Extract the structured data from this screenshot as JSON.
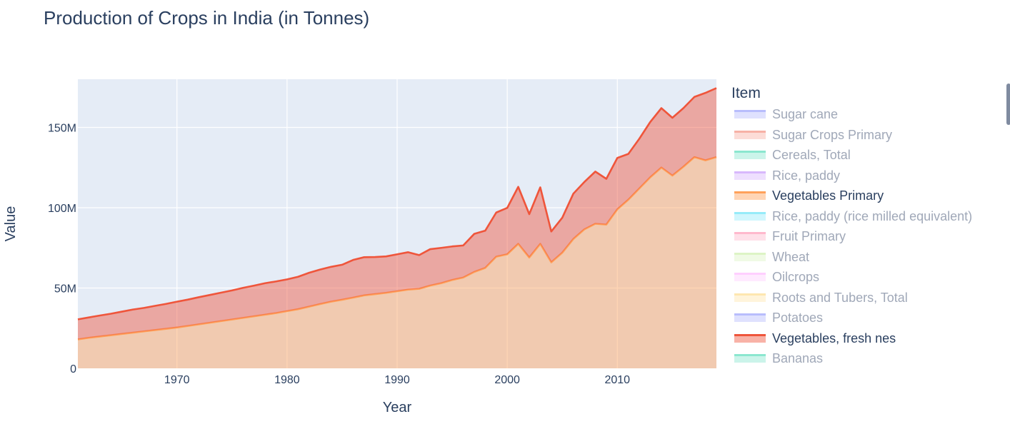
{
  "chart_data": {
    "type": "area",
    "title": "Production of Crops in India (in Tonnes)",
    "xlabel": "Year",
    "ylabel": "Value",
    "xlim": [
      1961,
      2019
    ],
    "ylim": [
      0,
      180000000
    ],
    "x_ticks": [
      1970,
      1980,
      1990,
      2000,
      2010
    ],
    "y_ticks": [
      0,
      50000000,
      100000000,
      150000000
    ],
    "y_tick_labels": [
      "0",
      "50M",
      "100M",
      "150M"
    ],
    "grid": true,
    "legend_placement": "right",
    "legend_title": "Item",
    "x": [
      1961,
      1962,
      1963,
      1964,
      1965,
      1966,
      1967,
      1968,
      1969,
      1970,
      1971,
      1972,
      1973,
      1974,
      1975,
      1976,
      1977,
      1978,
      1979,
      1980,
      1981,
      1982,
      1983,
      1984,
      1985,
      1986,
      1987,
      1988,
      1989,
      1990,
      1991,
      1992,
      1993,
      1994,
      1995,
      1996,
      1997,
      1998,
      1999,
      2000,
      2001,
      2002,
      2003,
      2004,
      2005,
      2006,
      2007,
      2008,
      2009,
      2010,
      2011,
      2012,
      2013,
      2014,
      2015,
      2016,
      2017,
      2018,
      2019
    ],
    "series": [
      {
        "name": "Vegetables Primary",
        "color": "#FFA15A",
        "values": [
          18000000,
          19000000,
          19800000,
          20600000,
          21400000,
          22200000,
          23000000,
          23800000,
          24600000,
          25400000,
          26400000,
          27400000,
          28400000,
          29400000,
          30400000,
          31400000,
          32400000,
          33400000,
          34400000,
          35600000,
          36800000,
          38400000,
          40000000,
          41500000,
          42700000,
          44000000,
          45400000,
          46200000,
          47000000,
          48000000,
          49000000,
          49500000,
          51500000,
          53000000,
          55000000,
          56500000,
          60000000,
          62500000,
          69500000,
          71000000,
          77500000,
          69000000,
          77500000,
          66000000,
          72000000,
          80500000,
          86500000,
          90000000,
          89500000,
          99000000,
          105000000,
          112000000,
          119000000,
          125000000,
          120000000,
          125500000,
          131500000,
          129500000,
          131500000
        ]
      },
      {
        "name": "Vegetables, fresh nes",
        "color": "#EF553B",
        "values": [
          30500000,
          31700000,
          32900000,
          34000000,
          35300000,
          36600000,
          37600000,
          38900000,
          40100000,
          41500000,
          42800000,
          44300000,
          45700000,
          47100000,
          48500000,
          50100000,
          51500000,
          53000000,
          54100000,
          55400000,
          57000000,
          59500000,
          61500000,
          63200000,
          64500000,
          67500000,
          69200000,
          69300000,
          69700000,
          71000000,
          72300000,
          70500000,
          74200000,
          75000000,
          75900000,
          76500000,
          83700000,
          85700000,
          97000000,
          99900000,
          113000000,
          96000000,
          112700000,
          85200000,
          93800000,
          108700000,
          116000000,
          122500000,
          118000000,
          131000000,
          133500000,
          143000000,
          153500000,
          162000000,
          156000000,
          162000000,
          169000000,
          171500000,
          174500000
        ]
      }
    ],
    "legend_items": [
      {
        "name": "Sugar cane",
        "color": "#636EFA",
        "visible": false
      },
      {
        "name": "Sugar Crops Primary",
        "color": "#EF553B",
        "visible": false
      },
      {
        "name": "Cereals, Total",
        "color": "#00CC96",
        "visible": false
      },
      {
        "name": "Rice, paddy",
        "color": "#AB63FA",
        "visible": false
      },
      {
        "name": "Vegetables Primary",
        "color": "#FFA15A",
        "visible": true
      },
      {
        "name": "Rice, paddy (rice milled equivalent)",
        "color": "#19D3F3",
        "visible": false
      },
      {
        "name": "Fruit Primary",
        "color": "#FF6692",
        "visible": false
      },
      {
        "name": "Wheat",
        "color": "#B6E880",
        "visible": false
      },
      {
        "name": "Oilcrops",
        "color": "#FF97FF",
        "visible": false
      },
      {
        "name": "Roots and Tubers, Total",
        "color": "#FECB52",
        "visible": false
      },
      {
        "name": "Potatoes",
        "color": "#636EFA",
        "visible": false
      },
      {
        "name": "Vegetables, fresh nes",
        "color": "#EF553B",
        "visible": true
      },
      {
        "name": "Bananas",
        "color": "#00CC96",
        "visible": false
      }
    ]
  }
}
